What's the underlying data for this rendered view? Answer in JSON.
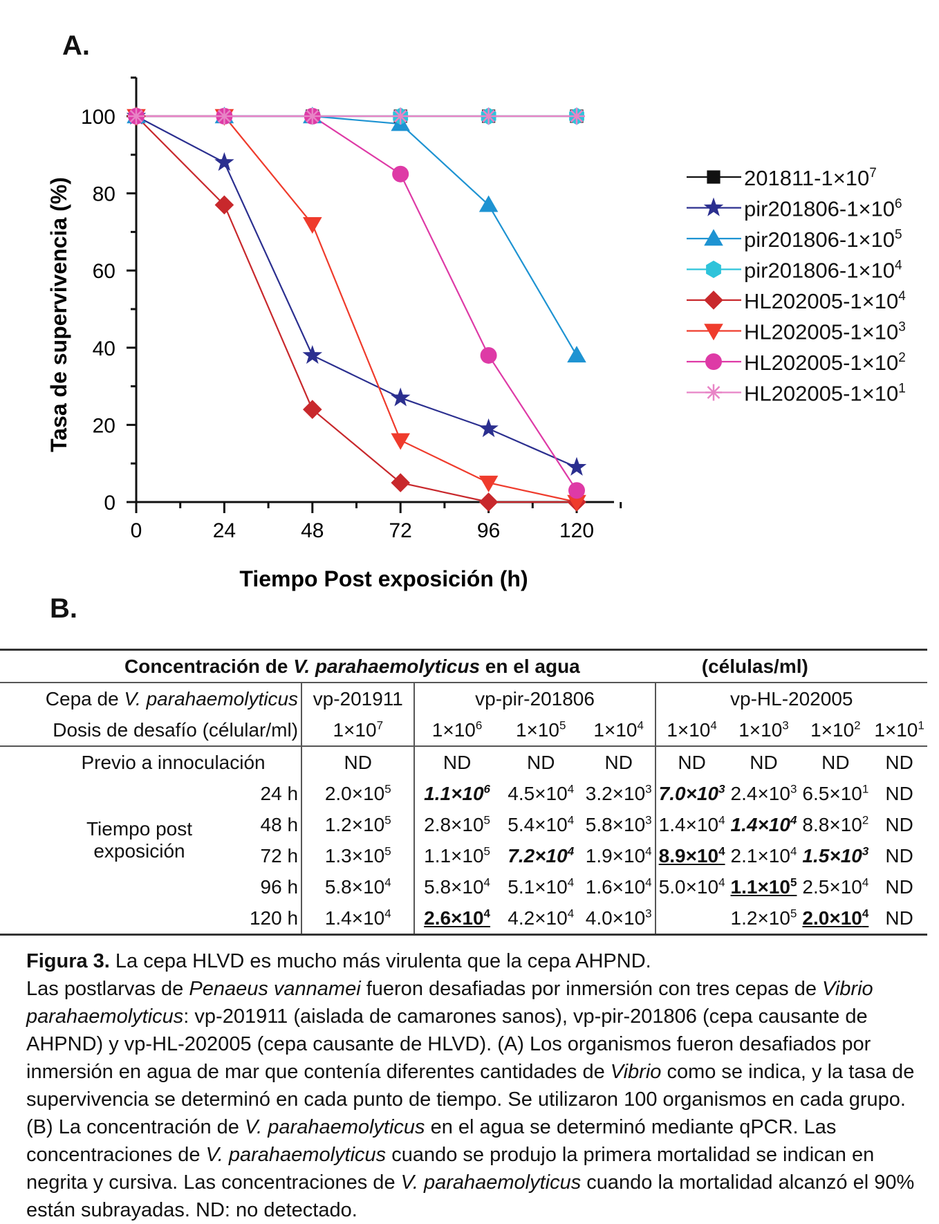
{
  "panel_a_label": "A.",
  "panel_b_label": "B.",
  "chart_data": {
    "type": "line",
    "xlabel": "Tiempo Post exposición (h)",
    "ylabel": "Tasa de supervivencia (%)",
    "x": [
      0,
      24,
      48,
      72,
      96,
      120
    ],
    "xlim": [
      0,
      130
    ],
    "ylim": [
      0,
      110
    ],
    "xticks": [
      0,
      24,
      48,
      72,
      96,
      120
    ],
    "yticks": [
      0,
      20,
      40,
      60,
      80,
      100
    ],
    "legend_position": "right",
    "series": [
      {
        "name": "201811-1×10",
        "exp": "7",
        "marker": "square",
        "color": "#111111",
        "values": [
          100,
          100,
          100,
          100,
          100,
          100
        ]
      },
      {
        "name": "pir201806-1×10",
        "exp": "6",
        "marker": "star",
        "color": "#2b2f8f",
        "values": [
          100,
          88,
          38,
          27,
          19,
          9
        ]
      },
      {
        "name": "pir201806-1×10",
        "exp": "5",
        "marker": "triangle-up",
        "color": "#1e93d2",
        "values": [
          100,
          100,
          100,
          98,
          77,
          38
        ]
      },
      {
        "name": "pir201806-1×10",
        "exp": "4",
        "marker": "hexagon",
        "color": "#2ec3da",
        "values": [
          100,
          100,
          100,
          100,
          100,
          100
        ]
      },
      {
        "name": "HL202005-1×10",
        "exp": "4",
        "marker": "diamond",
        "color": "#c8282c",
        "values": [
          100,
          77,
          24,
          5,
          0,
          0
        ]
      },
      {
        "name": "HL202005-1×10",
        "exp": "3",
        "marker": "triangle-down",
        "color": "#ef3b2c",
        "values": [
          100,
          100,
          72,
          16,
          5,
          0
        ]
      },
      {
        "name": "HL202005-1×10",
        "exp": "2",
        "marker": "circle",
        "color": "#de3aa6",
        "values": [
          100,
          100,
          100,
          85,
          38,
          3
        ]
      },
      {
        "name": "HL202005-1×10",
        "exp": "1",
        "marker": "asterisk",
        "color": "#e884c6",
        "values": [
          100,
          100,
          100,
          100,
          100,
          100
        ]
      }
    ]
  },
  "table": {
    "title_pre": "Concentración de ",
    "title_species": "V. parahaemolyticus",
    "title_post": " en el agua",
    "title_units": "(células/ml)",
    "strain_label_pre": "Cepa de ",
    "strain_label_species": "V. parahaemolyticus",
    "strains": [
      "vp-201911",
      "vp-pir-201806",
      "vp-HL-202005"
    ],
    "dose_label": "Dosis de desafío (célular/ml)",
    "doses": [
      {
        "base": "1×10",
        "exp": "7"
      },
      {
        "base": "1×10",
        "exp": "6"
      },
      {
        "base": "1×10",
        "exp": "5"
      },
      {
        "base": "1×10",
        "exp": "4"
      },
      {
        "base": "1×10",
        "exp": "4"
      },
      {
        "base": "1×10",
        "exp": "3"
      },
      {
        "base": "1×10",
        "exp": "2"
      },
      {
        "base": "1×10",
        "exp": "1"
      }
    ],
    "group_label_1": "Tiempo post",
    "group_label_2": "exposición",
    "rows": [
      {
        "label": "Previo a innoculación",
        "cells": [
          {
            "v": "ND"
          },
          {
            "v": "ND"
          },
          {
            "v": "ND"
          },
          {
            "v": "ND"
          },
          {
            "v": "ND"
          },
          {
            "v": "ND"
          },
          {
            "v": "ND"
          },
          {
            "v": "ND"
          }
        ]
      },
      {
        "label": "24 h",
        "cells": [
          {
            "b": "2.0×10",
            "e": "5"
          },
          {
            "b": "1.1×10",
            "e": "6",
            "s": "bi"
          },
          {
            "b": "4.5×10",
            "e": "4"
          },
          {
            "b": "3.2×10",
            "e": "3"
          },
          {
            "b": "7.0×10",
            "e": "3",
            "s": "bi"
          },
          {
            "b": "2.4×10",
            "e": "3"
          },
          {
            "b": "6.5×10",
            "e": "1"
          },
          {
            "v": "ND"
          }
        ]
      },
      {
        "label": "48 h",
        "cells": [
          {
            "b": "1.2×10",
            "e": "5"
          },
          {
            "b": "2.8×10",
            "e": "5"
          },
          {
            "b": "5.4×10",
            "e": "4"
          },
          {
            "b": "5.8×10",
            "e": "3"
          },
          {
            "b": "1.4×10",
            "e": "4"
          },
          {
            "b": "1.4×10",
            "e": "4",
            "s": "bi"
          },
          {
            "b": "8.8×10",
            "e": "2"
          },
          {
            "v": "ND"
          }
        ]
      },
      {
        "label": "72 h",
        "cells": [
          {
            "b": "1.3×10",
            "e": "5"
          },
          {
            "b": "1.1×10",
            "e": "5"
          },
          {
            "b": "7.2×10",
            "e": "4",
            "s": "bi"
          },
          {
            "b": "1.9×10",
            "e": "4"
          },
          {
            "b": "8.9×10",
            "e": "4",
            "s": "ul"
          },
          {
            "b": "2.1×10",
            "e": "4"
          },
          {
            "b": "1.5×10",
            "e": "3",
            "s": "bi"
          },
          {
            "v": "ND"
          }
        ]
      },
      {
        "label": "96 h",
        "cells": [
          {
            "b": "5.8×10",
            "e": "4"
          },
          {
            "b": "5.8×10",
            "e": "4"
          },
          {
            "b": "5.1×10",
            "e": "4"
          },
          {
            "b": "1.6×10",
            "e": "4"
          },
          {
            "b": "5.0×10",
            "e": "4"
          },
          {
            "b": "1.1×10",
            "e": "5",
            "s": "ul"
          },
          {
            "b": "2.5×10",
            "e": "4"
          },
          {
            "v": "ND"
          }
        ]
      },
      {
        "label": "120 h",
        "cells": [
          {
            "b": "1.4×10",
            "e": "4"
          },
          {
            "b": "2.6×10",
            "e": "4",
            "s": "ul"
          },
          {
            "b": "4.2×10",
            "e": "4"
          },
          {
            "b": "4.0×10",
            "e": "3"
          },
          {
            "v": ""
          },
          {
            "b": "1.2×10",
            "e": "5"
          },
          {
            "b": "2.0×10",
            "e": "4",
            "s": "ul"
          },
          {
            "v": "ND"
          }
        ]
      }
    ]
  },
  "caption": {
    "fig_label": "Figura 3.",
    "title": " La cepa HLVD es mucho más virulenta que la cepa AHPND.",
    "t1": "Las postlarvas de ",
    "i1": "Penaeus vannamei",
    "t2": " fueron desafiadas por inmersión con tres cepas de ",
    "i2": "Vibrio parahaemolyticus",
    "t3": ": vp-201911 (aislada de camarones sanos), vp-pir-201806 (cepa causante de AHPND) y vp-HL-202005 (cepa causante de HLVD). (A) Los organismos fueron desafiados por inmersión en agua de mar que contenía diferentes cantidades de ",
    "i3": "Vibrio",
    "t4": " como se indica, y la tasa de supervivencia se determinó en cada punto de tiempo. Se utilizaron 100 organismos en cada grupo. (B) La concentración de ",
    "i4": "V. parahaemolyticus",
    "t5": " en el agua se determinó mediante qPCR. Las concentraciones de ",
    "i5": "V. parahaemolyticus",
    "t6": " cuando se produjo la primera mortalidad se indican en negrita y cursiva. Las concentraciones de ",
    "i6": "V. parahaemolyticus",
    "t7": " cuando la mortalidad alcanzó el 90% están subrayadas. ND: no detectado."
  }
}
